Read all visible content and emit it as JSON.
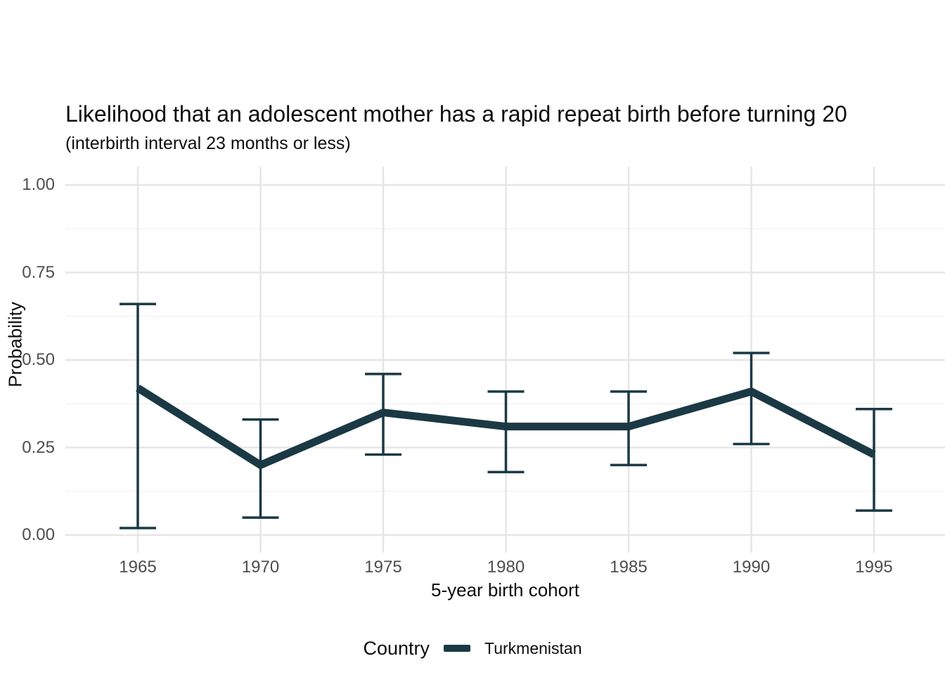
{
  "header": {
    "title": "Likelihood that an adolescent mother has a rapid repeat birth before turning 20",
    "subtitle": "(interbirth interval 23 months or less)"
  },
  "legend": {
    "title": "Country",
    "series_label": "Turkmenistan"
  },
  "chart_data": {
    "type": "line",
    "title": "Likelihood that an adolescent mother has a rapid repeat birth before turning 20",
    "subtitle": "(interbirth interval 23 months or less)",
    "xlabel": "5-year birth cohort",
    "ylabel": "Probability",
    "x": [
      1965,
      1970,
      1975,
      1980,
      1985,
      1990,
      1995
    ],
    "series": [
      {
        "name": "Turkmenistan",
        "color": "#1b3944",
        "values": [
          0.42,
          0.2,
          0.35,
          0.31,
          0.31,
          0.41,
          0.23
        ],
        "ci_lower": [
          0.02,
          0.05,
          0.23,
          0.18,
          0.2,
          0.26,
          0.07
        ],
        "ci_upper": [
          0.66,
          0.33,
          0.46,
          0.41,
          0.41,
          0.52,
          0.36
        ]
      }
    ],
    "error_bars": true,
    "x_ticks": {
      "labels": [
        "1965",
        "1970",
        "1975",
        "1980",
        "1985",
        "1990",
        "1995"
      ],
      "values": [
        1965,
        1970,
        1975,
        1980,
        1985,
        1990,
        1995
      ]
    },
    "y_ticks": {
      "labels": [
        "0.00",
        "0.25",
        "0.50",
        "0.75",
        "1.00"
      ],
      "values": [
        0,
        0.25,
        0.5,
        0.75,
        1
      ]
    },
    "ylim": [
      0,
      1
    ],
    "grid": "horizontal major+minor, vertical major only",
    "grid_major_color": "#e6e6e6",
    "grid_minor_color": "#f2f2f2",
    "background": "#ffffff",
    "legend_position": "bottom"
  }
}
